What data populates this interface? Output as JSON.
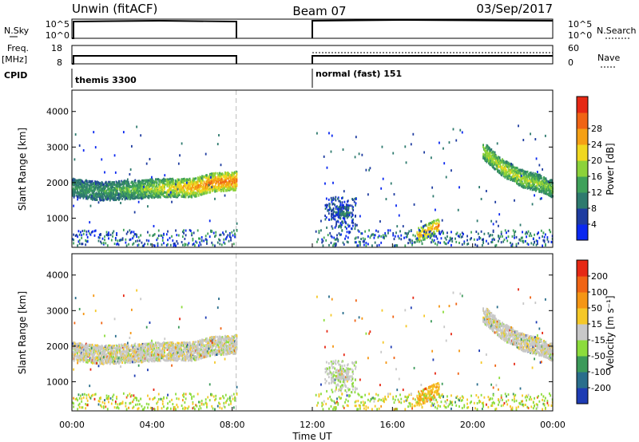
{
  "header": {
    "left": "Unwin (fitACF)",
    "center": "Beam 07",
    "right": "03/Sep/2017"
  },
  "strips": {
    "nsky": {
      "label": "N.Sky",
      "ticks": [
        "10^5",
        "10^0"
      ],
      "right_label": "N.Search",
      "right_ticks": [
        "10^5",
        "10^0"
      ]
    },
    "freq": {
      "label": "Freq.",
      "unit": "[MHz]",
      "ticks": [
        "18",
        "8"
      ],
      "right_label": "Nave",
      "right_ticks": [
        "60",
        "0"
      ]
    },
    "cpid": {
      "label": "CPID",
      "segments": [
        {
          "label": "themis 3300",
          "start_h": 0.0
        },
        {
          "label": "normal (fast) 151",
          "start_h": 12.0
        }
      ]
    }
  },
  "chart_data": [
    {
      "type": "heatmap",
      "name": "power",
      "ylabel": "Slant Range [km]",
      "yticks": [
        1000,
        2000,
        3000,
        4000
      ],
      "ylim": [
        180,
        4600
      ],
      "xlim": [
        0,
        24
      ],
      "colorbar": {
        "label": "Power [dB]",
        "ticks": [
          "4",
          "8",
          "12",
          "16",
          "20",
          "24",
          "28"
        ],
        "colors": [
          "#0a28f0",
          "#1e3ca0",
          "#2e7a6e",
          "#3fa15a",
          "#8cd23a",
          "#f0d820",
          "#f5a015",
          "#f06414",
          "#e62814"
        ]
      },
      "gap": [
        8.2,
        12.0
      ],
      "features": [
        {
          "label": "band",
          "x": [
            0.0,
            1.5,
            3.0,
            4.5,
            6.0,
            7.0,
            8.2
          ],
          "y": [
            1850,
            1750,
            1800,
            1850,
            1850,
            2000,
            2050
          ],
          "intensity": [
            0.35,
            0.35,
            0.45,
            0.6,
            0.75,
            0.85,
            0.85
          ]
        },
        {
          "label": "echo",
          "x": [
            20.5,
            21.5,
            22.5,
            23.5,
            24.0
          ],
          "y": [
            2900,
            2400,
            2100,
            1950,
            1800
          ],
          "intensity": [
            0.55,
            0.6,
            0.55,
            0.5,
            0.45
          ]
        },
        {
          "label": "echo",
          "x": [
            13.2,
            13.8
          ],
          "y": [
            1200,
            1150
          ],
          "intensity": [
            0.3,
            0.3
          ]
        },
        {
          "label": "echo",
          "x": [
            17.2,
            18.3
          ],
          "y": [
            500,
            800
          ],
          "intensity": [
            0.7,
            0.85
          ]
        }
      ]
    },
    {
      "type": "heatmap",
      "name": "velocity",
      "ylabel": "Slant Range [km]",
      "yticks": [
        1000,
        2000,
        3000,
        4000
      ],
      "ylim": [
        180,
        4600
      ],
      "xlim": [
        0,
        24
      ],
      "xticks": [
        "00:00",
        "04:00",
        "08:00",
        "12:00",
        "16:00",
        "20:00",
        "00:00"
      ],
      "xlabel": "Time UT",
      "colorbar": {
        "label": "Velocity [m s⁻¹]",
        "ticks": [
          "200",
          "100",
          "50",
          "15",
          "-15",
          "-50",
          "-100",
          "-200"
        ],
        "colors": [
          "#1e3cb4",
          "#2a6e8c",
          "#3c9a5a",
          "#8cdc3c",
          "#c8c8c8",
          "#f5c828",
          "#f59614",
          "#f06414",
          "#e62814"
        ]
      },
      "gap": [
        8.2,
        12.0
      ]
    }
  ]
}
